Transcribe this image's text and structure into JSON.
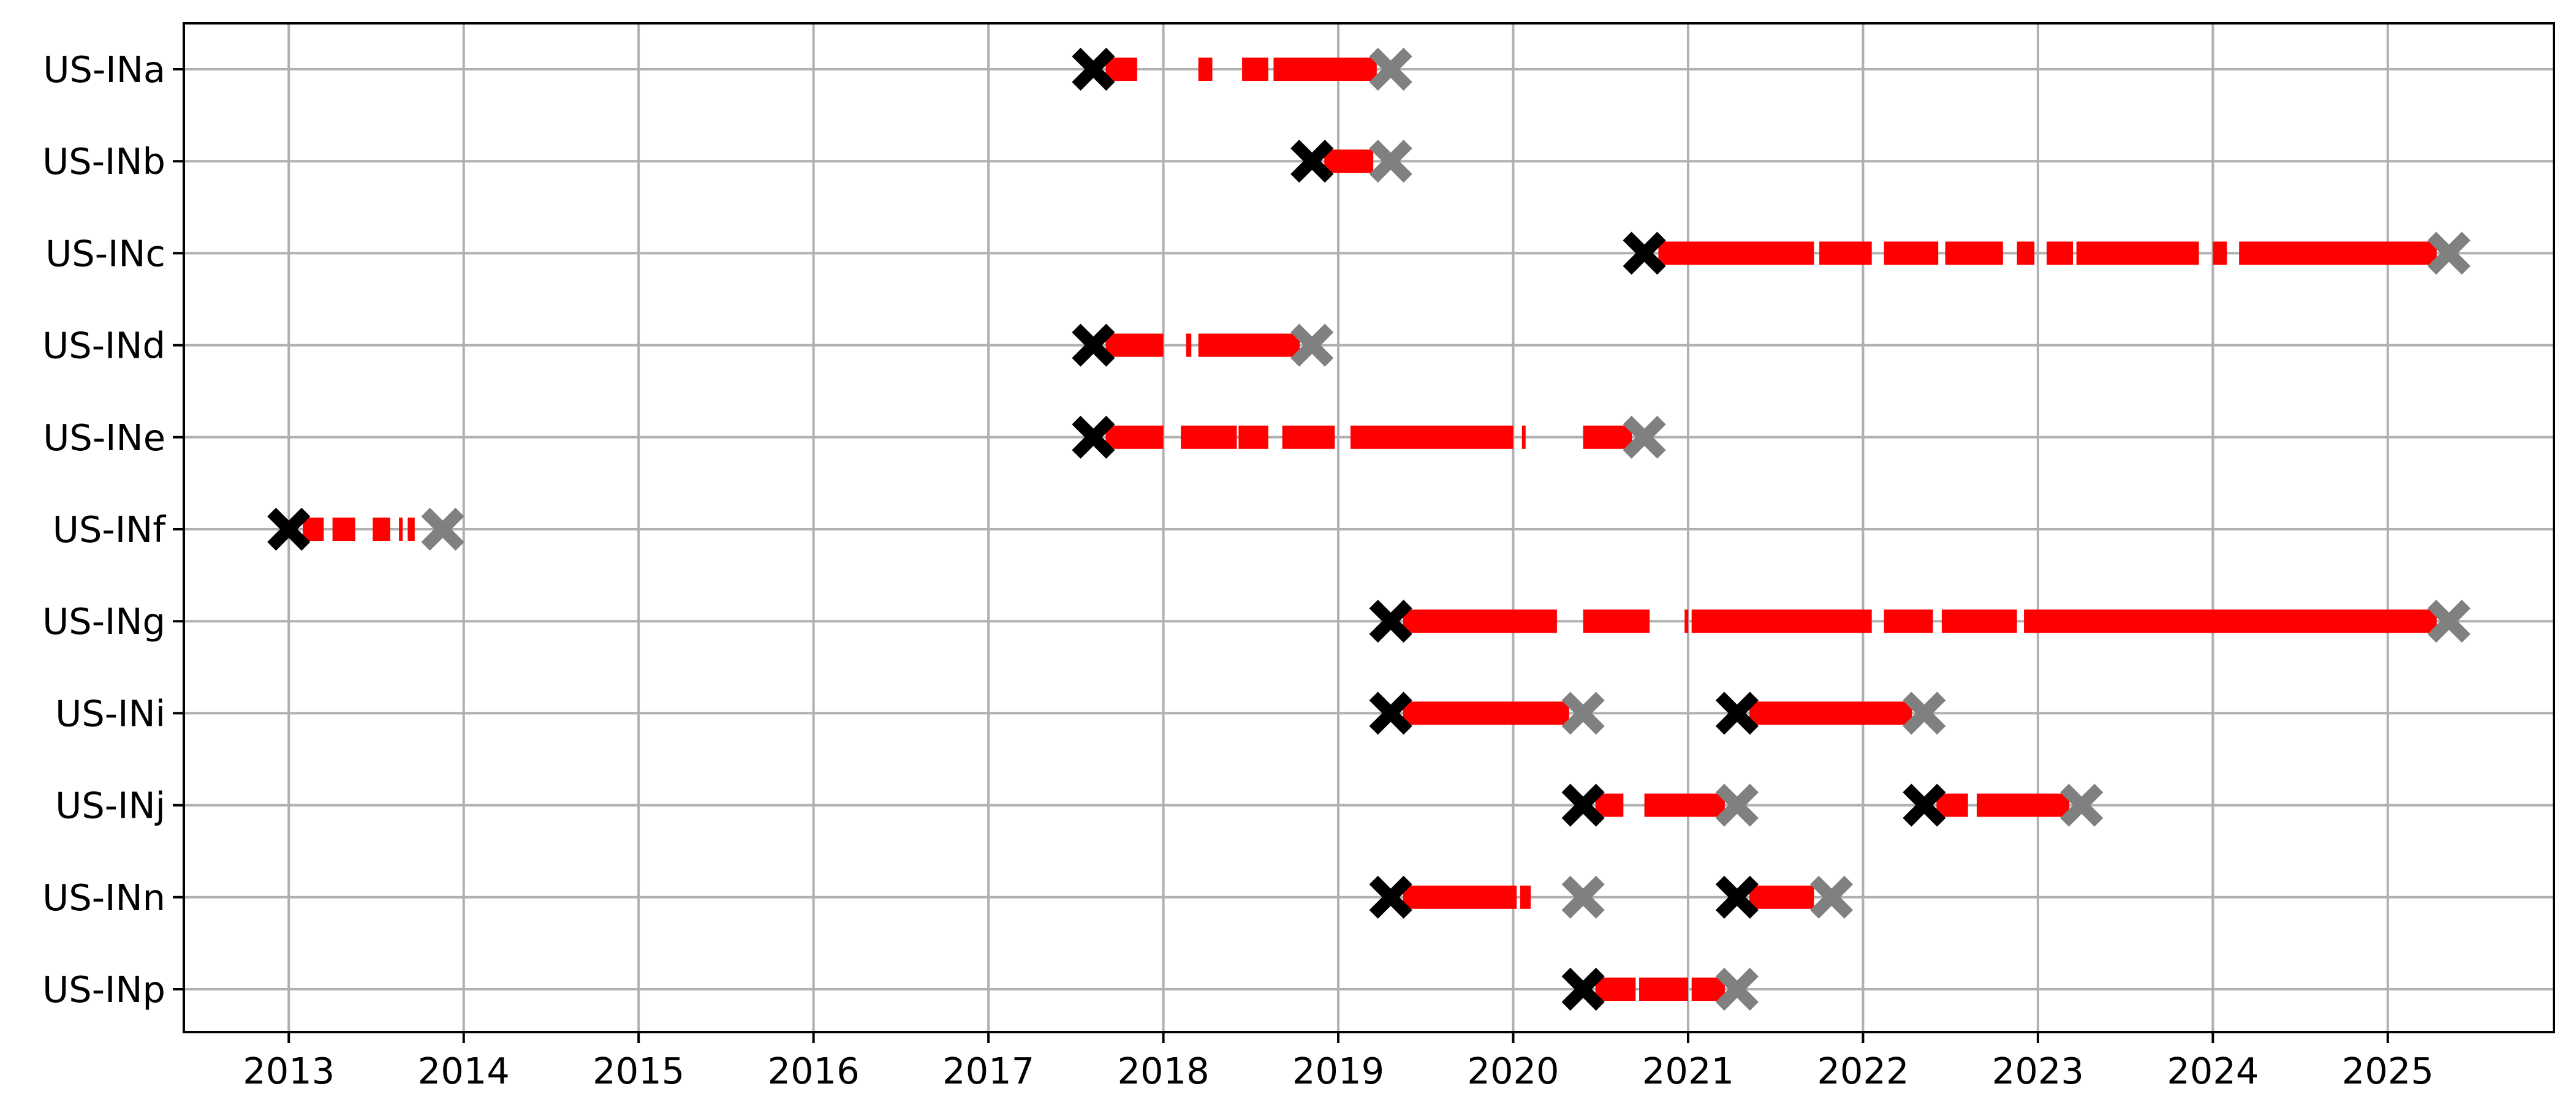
{
  "chart_data": {
    "type": "timeline",
    "title": "",
    "xlabel": "",
    "ylabel": "",
    "xlim": [
      2012.4,
      2025.95
    ],
    "x_ticks": [
      2013,
      2014,
      2015,
      2016,
      2017,
      2018,
      2019,
      2020,
      2021,
      2022,
      2023,
      2024,
      2025
    ],
    "grid": true,
    "legend": "none",
    "colors": {
      "segment": "#ff0000",
      "start_marker": "#000000",
      "end_marker": "#808080",
      "grid": "#b0b0b0"
    },
    "rows": [
      {
        "label": "US-INa",
        "starts": [
          2017.6
        ],
        "ends": [
          2019.3
        ],
        "segments": [
          [
            2017.67,
            2017.8
          ],
          [
            2017.8,
            2017.85
          ],
          [
            2018.2,
            2018.28
          ],
          [
            2018.45,
            2018.6
          ],
          [
            2018.63,
            2019.22
          ]
        ]
      },
      {
        "label": "US-INb",
        "starts": [
          2018.85
        ],
        "ends": [
          2019.3
        ],
        "segments": [
          [
            2018.92,
            2019.2
          ]
        ]
      },
      {
        "label": "US-INc",
        "starts": [
          2020.75
        ],
        "ends": [
          2025.35
        ],
        "segments": [
          [
            2020.83,
            2021.72
          ],
          [
            2021.75,
            2022.05
          ],
          [
            2022.12,
            2022.43
          ],
          [
            2022.47,
            2022.8
          ],
          [
            2022.88,
            2022.98
          ],
          [
            2023.05,
            2023.2
          ],
          [
            2023.22,
            2023.92
          ],
          [
            2024.0,
            2024.08
          ],
          [
            2024.15,
            2025.28
          ]
        ]
      },
      {
        "label": "US-INd",
        "starts": [
          2017.6
        ],
        "ends": [
          2018.85
        ],
        "segments": [
          [
            2017.67,
            2018.0
          ],
          [
            2018.13,
            2018.16
          ],
          [
            2018.2,
            2018.78
          ]
        ]
      },
      {
        "label": "US-INe",
        "starts": [
          2017.6
        ],
        "ends": [
          2020.75
        ],
        "segments": [
          [
            2017.67,
            2018.0
          ],
          [
            2018.1,
            2018.42
          ],
          [
            2018.43,
            2018.6
          ],
          [
            2018.68,
            2018.98
          ],
          [
            2019.07,
            2020.0
          ],
          [
            2020.05,
            2020.07
          ],
          [
            2020.4,
            2020.68
          ]
        ]
      },
      {
        "label": "US-INf",
        "starts": [
          2013.0
        ],
        "ends": [
          2013.88
        ],
        "segments": [
          [
            2013.08,
            2013.2
          ],
          [
            2013.25,
            2013.38
          ],
          [
            2013.48,
            2013.58
          ],
          [
            2013.63,
            2013.65
          ],
          [
            2013.68,
            2013.72
          ]
        ]
      },
      {
        "label": "US-INg",
        "starts": [
          2019.3
        ],
        "ends": [
          2025.35
        ],
        "segments": [
          [
            2019.37,
            2020.25
          ],
          [
            2020.4,
            2020.78
          ],
          [
            2020.98,
            2021.0
          ],
          [
            2021.02,
            2022.05
          ],
          [
            2022.12,
            2022.4
          ],
          [
            2022.45,
            2022.88
          ],
          [
            2022.92,
            2025.28
          ]
        ]
      },
      {
        "label": "US-INi",
        "starts": [
          2019.3,
          2021.28
        ],
        "ends": [
          2020.4,
          2022.35
        ],
        "segments": [
          [
            2019.37,
            2020.32
          ],
          [
            2021.35,
            2022.28
          ]
        ]
      },
      {
        "label": "US-INj",
        "starts": [
          2020.4,
          2022.35
        ],
        "ends": [
          2021.28,
          2023.25
        ],
        "segments": [
          [
            2020.47,
            2020.63
          ],
          [
            2020.75,
            2021.21
          ],
          [
            2022.42,
            2022.6
          ],
          [
            2022.65,
            2023.18
          ]
        ]
      },
      {
        "label": "US-INn",
        "starts": [
          2019.3,
          2021.28
        ],
        "ends": [
          2020.4,
          2021.82
        ],
        "segments": [
          [
            2019.37,
            2020.02
          ],
          [
            2020.04,
            2020.1
          ],
          [
            2021.35,
            2021.72
          ]
        ]
      },
      {
        "label": "US-INp",
        "starts": [
          2020.4
        ],
        "ends": [
          2021.28
        ],
        "segments": [
          [
            2020.47,
            2020.7
          ],
          [
            2020.72,
            2021.0
          ],
          [
            2021.02,
            2021.21
          ]
        ]
      }
    ]
  }
}
